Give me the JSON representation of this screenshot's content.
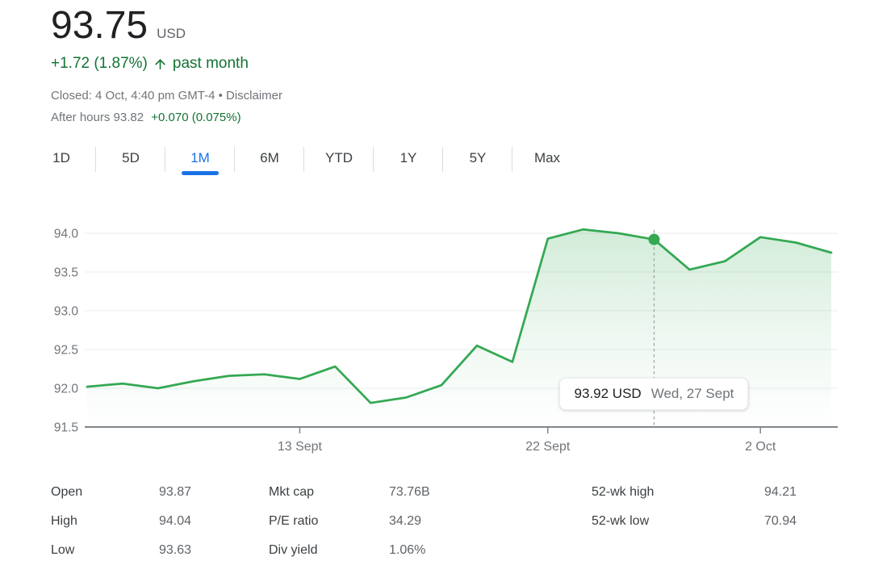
{
  "header": {
    "price": "93.75",
    "currency": "USD",
    "change_text": "+1.72 (1.87%)",
    "change_direction": "up",
    "change_period": "past month",
    "closed_text": "Closed: 4 Oct, 4:40 pm GMT-4 •",
    "disclaimer_label": "Disclaimer",
    "after_hours_text": "After hours 93.82",
    "after_hours_change": "+0.070 (0.075%)"
  },
  "tabs": {
    "items": [
      "1D",
      "5D",
      "1M",
      "6M",
      "YTD",
      "1Y",
      "5Y",
      "Max"
    ],
    "active": "1M"
  },
  "chart_data": {
    "type": "area",
    "title": "Stock price, past month",
    "x": [
      "5 Sept",
      "6 Sept",
      "7 Sept",
      "8 Sept",
      "11 Sept",
      "12 Sept",
      "13 Sept",
      "14 Sept",
      "15 Sept",
      "18 Sept",
      "19 Sept",
      "20 Sept",
      "21 Sept",
      "22 Sept",
      "25 Sept",
      "26 Sept",
      "27 Sept",
      "28 Sept",
      "29 Sept",
      "2 Oct",
      "3 Oct",
      "4 Oct"
    ],
    "values": [
      92.02,
      92.06,
      92.0,
      92.09,
      92.16,
      92.18,
      92.12,
      92.28,
      91.81,
      91.88,
      92.04,
      92.55,
      92.34,
      93.93,
      94.05,
      94.0,
      93.92,
      93.53,
      93.64,
      93.95,
      93.88,
      93.75
    ],
    "ylim": [
      91.5,
      94.1
    ],
    "grid": true,
    "legend": "none",
    "yticks": [
      {
        "value": 94.0,
        "label": "94.0"
      },
      {
        "value": 93.5,
        "label": "93.5"
      },
      {
        "value": 93.0,
        "label": "93.0"
      },
      {
        "value": 92.5,
        "label": "92.5"
      },
      {
        "value": 92.0,
        "label": "92.0"
      },
      {
        "value": 91.5,
        "label": "91.5"
      }
    ],
    "xticks": [
      {
        "index": 6,
        "label": "13 Sept"
      },
      {
        "index": 13,
        "label": "22 Sept"
      },
      {
        "index": 19,
        "label": "2 Oct"
      }
    ],
    "highlight": {
      "index": 16,
      "value": 93.92,
      "price": "93.92 USD",
      "date": "Wed, 27 Sept"
    }
  },
  "stats": {
    "columns": [
      {
        "rows": [
          {
            "label": "Open",
            "value": "93.87"
          },
          {
            "label": "High",
            "value": "94.04"
          },
          {
            "label": "Low",
            "value": "93.63"
          }
        ]
      },
      {
        "rows": [
          {
            "label": "Mkt cap",
            "value": "73.76B"
          },
          {
            "label": "P/E ratio",
            "value": "34.29"
          },
          {
            "label": "Div yield",
            "value": "1.06%"
          }
        ]
      },
      {
        "rows": [
          {
            "label": "52-wk high",
            "value": "94.21"
          },
          {
            "label": "52-wk low",
            "value": "70.94"
          }
        ]
      }
    ]
  },
  "colors": {
    "accent_blue": "#1a73e8",
    "green_text": "#137333",
    "chart_green": "#34a853",
    "text_primary": "#202124",
    "text_secondary": "#5f6368",
    "text_tertiary": "#70757a",
    "divider": "#dadce0",
    "gridline": "#f1f3f4",
    "axis": "#80868b"
  }
}
